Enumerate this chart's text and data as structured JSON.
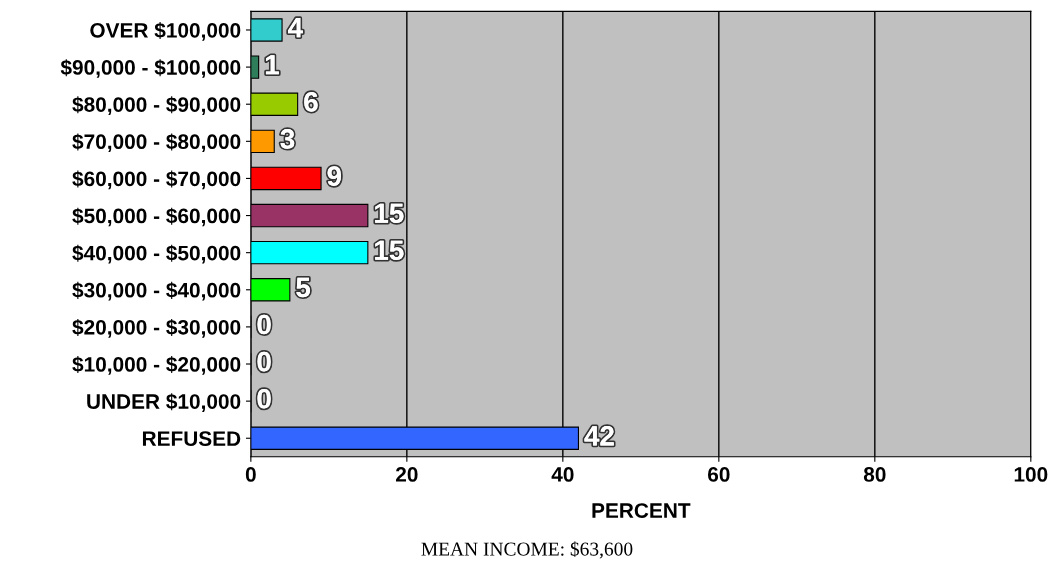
{
  "chart_data": {
    "type": "bar",
    "orientation": "horizontal",
    "categories": [
      "OVER $100,000",
      "$90,000 - $100,000",
      "$80,000 - $90,000",
      "$70,000 - $80,000",
      "$60,000 - $70,000",
      "$50,000 - $60,000",
      "$40,000 - $50,000",
      "$30,000 - $40,000",
      "$20,000 - $30,000",
      "$10,000 - $20,000",
      "UNDER $10,000",
      "REFUSED"
    ],
    "values": [
      4,
      1,
      6,
      3,
      9,
      15,
      15,
      5,
      0,
      0,
      0,
      42
    ],
    "colors": [
      "#33cccc",
      "#2e7d5b",
      "#99cc00",
      "#ff9900",
      "#ff0000",
      "#993366",
      "#00ffff",
      "#00ff00",
      "#cccc99",
      "#660066",
      "#cccc66",
      "#3366ff"
    ],
    "xlim": [
      0,
      100
    ],
    "xticks": [
      0,
      20,
      40,
      60,
      80,
      100
    ],
    "grid": "x",
    "xlabel": "PERCENT",
    "data_labels": true,
    "annotations": [
      "MEAN INCOME: $63,600"
    ]
  }
}
